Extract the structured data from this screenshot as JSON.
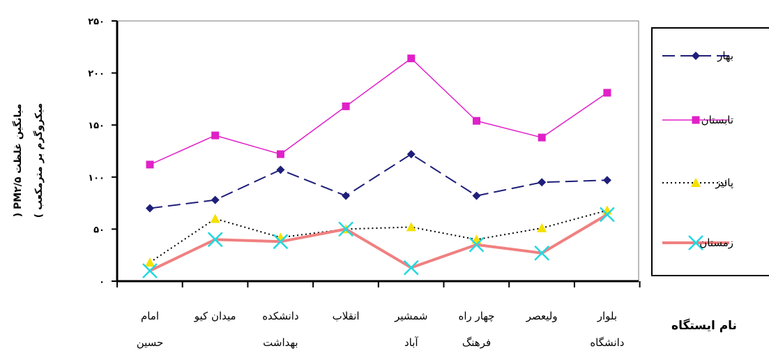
{
  "chart_data": {
    "type": "line",
    "ylabel_line1": "میانگین غلظت PM۲/۵ (",
    "ylabel_line2": "میکروگرم بر مترمکعب )",
    "xlabel": "نام ایستگاه",
    "ylim": [
      0,
      250
    ],
    "yticks": [
      0,
      50,
      100,
      150,
      200,
      250
    ],
    "ytick_labels": [
      "۰",
      "۵۰",
      "۱۰۰",
      "۱۵۰",
      "۲۰۰",
      "۲۵۰"
    ],
    "categories": [
      [
        "امام",
        "حسین"
      ],
      [
        "میدان کیو"
      ],
      [
        "دانشکده",
        "بهداشت"
      ],
      [
        "انقلاب"
      ],
      [
        "شمشیر",
        "آباد"
      ],
      [
        "چهار راه",
        "فرهنگ"
      ],
      [
        "ولیعصر"
      ],
      [
        "بلوار",
        "دانشگاه"
      ]
    ],
    "grid": false,
    "legend_position": "right",
    "series": [
      {
        "name": "بهار",
        "color": "#1f1f7a",
        "marker": "diamond",
        "dash": "18,8",
        "width": 2,
        "values": [
          70,
          78,
          107,
          82,
          122,
          82,
          95,
          97
        ]
      },
      {
        "name": "تابستان",
        "color": "#e020c8",
        "marker": "square",
        "dash": "",
        "width": 1.5,
        "values": [
          112,
          140,
          122,
          168,
          214,
          154,
          138,
          181
        ]
      },
      {
        "name": "پائیز",
        "color": "#000000",
        "marker": "triangle",
        "dash": "2,4",
        "width": 2,
        "marker_color": "#f5e000",
        "values": [
          18,
          60,
          42,
          50,
          52,
          40,
          51,
          68
        ]
      },
      {
        "name": "زمستان",
        "color": "#f08080",
        "marker": "x",
        "dash": "",
        "width": 4,
        "marker_color": "#22d8e0",
        "values": [
          10,
          40,
          38,
          50,
          13,
          35,
          27,
          64
        ]
      }
    ]
  }
}
